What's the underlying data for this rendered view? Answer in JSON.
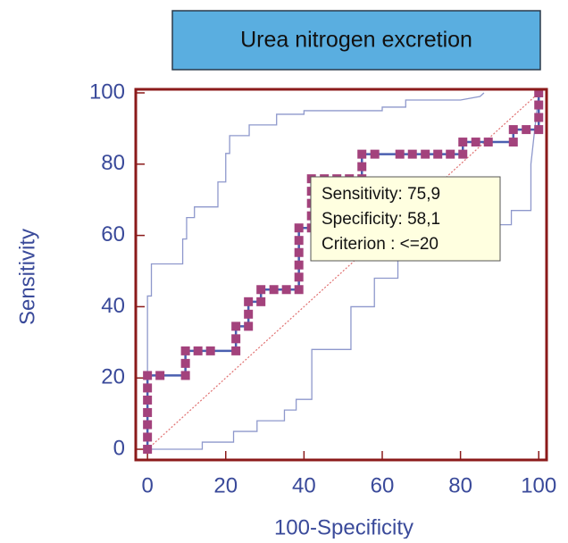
{
  "chart_data": {
    "type": "line",
    "title": "Urea nitrogen excretion",
    "xlabel": "100-Specificity",
    "ylabel": "Sensitivity",
    "xlim": [
      -3,
      102
    ],
    "ylim": [
      -3,
      101
    ],
    "xticks": [
      0,
      20,
      40,
      60,
      80,
      100
    ],
    "yticks": [
      0,
      20,
      40,
      60,
      80,
      100
    ],
    "diagonal": true,
    "diagonal_color": "#e07070",
    "tooltip": [
      "Sensitivity: 75,9",
      "Specificity: 58,1",
      "Criterion : <=20"
    ],
    "series": [
      {
        "color": "#8e98cc",
        "markers": false,
        "x": [
          0,
          0,
          1,
          1,
          9,
          9,
          10,
          10,
          12,
          12,
          18,
          18,
          20,
          20,
          21,
          21,
          26,
          26,
          33,
          33,
          40,
          40,
          60,
          60,
          66,
          66,
          80,
          85,
          86
        ],
        "values": [
          0,
          43,
          43,
          52,
          52,
          59,
          59,
          65,
          65,
          68,
          68,
          75,
          75,
          83,
          83,
          88,
          88,
          91,
          91,
          94,
          94,
          95,
          95,
          96,
          96,
          98,
          98,
          99,
          100
        ]
      },
      {
        "color": "#8e98cc",
        "markers": false,
        "x": [
          0,
          14,
          14,
          22,
          22,
          28,
          28,
          35,
          35,
          38,
          38,
          42,
          42,
          52,
          52,
          58,
          58,
          64,
          64,
          72,
          72,
          88,
          88,
          93,
          93,
          98,
          98,
          100
        ],
        "values": [
          0,
          0,
          2,
          2,
          5,
          5,
          8,
          8,
          11,
          11,
          14,
          14,
          28,
          28,
          40,
          40,
          48,
          48,
          53,
          53,
          59,
          59,
          63,
          63,
          67,
          67,
          80,
          100
        ]
      },
      {
        "color": "#4a5fb0",
        "markers": true,
        "marker_color": "#a3427c",
        "x": [
          0,
          0,
          0,
          0,
          0,
          0,
          0,
          3.2,
          9.7,
          9.7,
          9.7,
          12.9,
          16.1,
          22.6,
          22.6,
          22.6,
          25.8,
          25.8,
          25.8,
          29,
          29,
          32.3,
          35.5,
          38.7,
          38.7,
          38.7,
          38.7,
          38.7,
          38.7,
          41.9,
          41.9,
          41.9,
          41.9,
          41.9,
          45.2,
          48.4,
          51.6,
          54.8,
          54.8,
          54.8,
          58.1,
          64.5,
          67.7,
          71,
          74.2,
          77.4,
          80.6,
          80.6,
          83.9,
          87.1,
          93.5,
          93.5,
          96.8,
          100,
          100,
          100,
          100
        ],
        "values": [
          0,
          3.4,
          6.9,
          10.3,
          13.8,
          17.2,
          20.7,
          20.7,
          20.7,
          24.1,
          27.6,
          27.6,
          27.6,
          27.6,
          31,
          34.5,
          34.5,
          37.9,
          41.4,
          41.4,
          44.8,
          44.8,
          44.8,
          44.8,
          48.3,
          51.7,
          55.2,
          58.6,
          62.1,
          62.1,
          65.5,
          69,
          72.4,
          75.9,
          75.9,
          75.9,
          75.9,
          75.9,
          79.3,
          82.8,
          82.8,
          82.8,
          82.8,
          82.8,
          82.8,
          82.8,
          82.8,
          86.2,
          86.2,
          86.2,
          86.2,
          89.7,
          89.7,
          89.7,
          93.1,
          96.6,
          100
        ]
      }
    ]
  }
}
